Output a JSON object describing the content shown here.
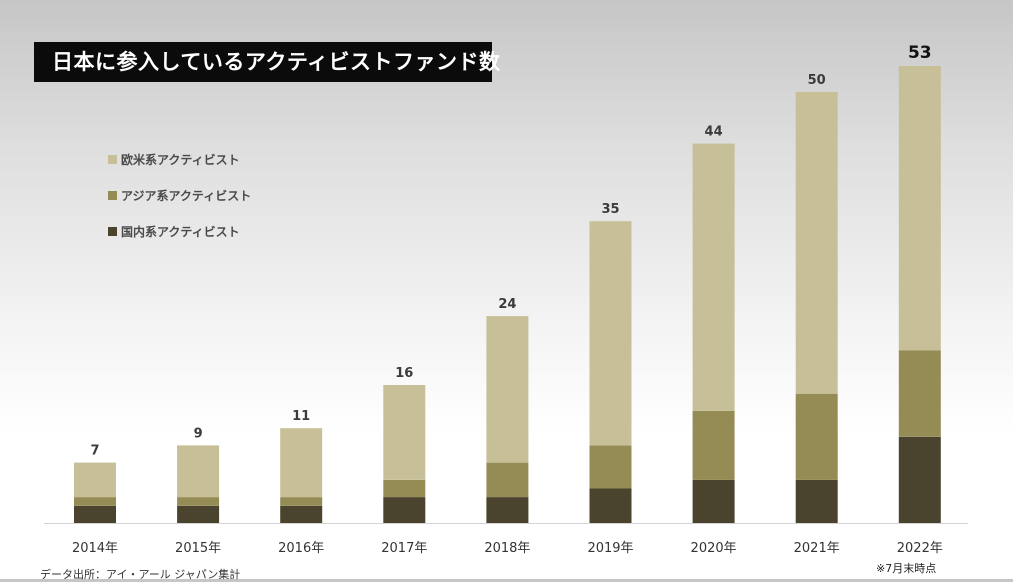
{
  "title": "日本に参入しているアクティビストファンド数",
  "source": "データ出所：アイ・アール ジャパン集計",
  "note": "※7月末時点",
  "colors": {
    "western": "#c7bf97",
    "asian": "#958c55",
    "domestic": "#4a432d",
    "title_bg": "#0b0b0b",
    "title_text": "#ffffff"
  },
  "chart_data": {
    "type": "bar",
    "stacked": true,
    "title": "日本に参入しているアクティビストファンド数",
    "categories": [
      "2014年",
      "2015年",
      "2016年",
      "2017年",
      "2018年",
      "2019年",
      "2020年",
      "2021年",
      "2022年"
    ],
    "series": [
      {
        "name": "国内系アクティビスト",
        "color": "#4a432d",
        "values": [
          2,
          2,
          2,
          3,
          3,
          4,
          5,
          5,
          10
        ]
      },
      {
        "name": "アジア系アクティビスト",
        "color": "#958c55",
        "values": [
          1,
          1,
          1,
          2,
          4,
          5,
          8,
          10,
          10
        ]
      },
      {
        "name": "欧米系アクティビスト",
        "color": "#c7bf97",
        "values": [
          4,
          6,
          8,
          11,
          17,
          26,
          31,
          35,
          33
        ]
      }
    ],
    "totals": [
      7,
      9,
      11,
      16,
      24,
      35,
      44,
      50,
      53
    ],
    "legend_order": [
      "欧米系アクティビスト",
      "アジア系アクティビスト",
      "国内系アクティビスト"
    ],
    "legend_position": "upper-left",
    "ylim": [
      0,
      53
    ],
    "grid": false,
    "xlabel": "",
    "ylabel": ""
  }
}
